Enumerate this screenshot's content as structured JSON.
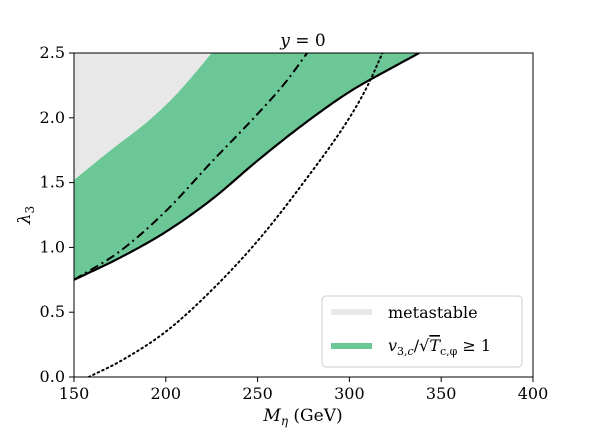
{
  "chart_data": {
    "type": "area",
    "title": "y = 0",
    "xlabel": "M_η (GeV)",
    "ylabel": "λ_3",
    "xlim": [
      150,
      400
    ],
    "ylim": [
      0,
      2.5
    ],
    "x_ticks": [
      150,
      200,
      250,
      300,
      350,
      400
    ],
    "x_tick_labels": [
      "150",
      "200",
      "250",
      "300",
      "350",
      "400"
    ],
    "y_ticks": [
      0,
      0.5,
      1.0,
      1.5,
      2.0,
      2.5
    ],
    "y_tick_labels": [
      "0.0",
      "0.5",
      "1.0",
      "1.5",
      "2.0",
      "2.5"
    ],
    "grid": false,
    "legend_position": "lower-right",
    "legend": [
      {
        "label": "metastable",
        "color": "#e8e8e8"
      },
      {
        "label": "v_{3,c}/√T_{c,φ} ≥ 1",
        "color": "#6cc796"
      }
    ],
    "series": [
      {
        "name": "metastable",
        "kind": "band",
        "color": "#e8e8e8",
        "upper_boundary": {
          "x": [
            150,
            400
          ],
          "y": [
            2.5,
            2.5
          ]
        },
        "lower_boundary": {
          "x": [
            150,
            170,
            190,
            205,
            215,
            225
          ],
          "y": [
            1.52,
            1.75,
            1.97,
            2.17,
            2.33,
            2.5
          ]
        }
      },
      {
        "name": "v_{3,c}/√T_{c,φ} ≥ 1",
        "kind": "band",
        "color": "#6cc796",
        "upper_boundary": {
          "x": [
            150,
            170,
            190,
            205,
            215,
            225
          ],
          "y": [
            1.52,
            1.75,
            1.97,
            2.17,
            2.33,
            2.5
          ]
        },
        "lower_boundary": {
          "x": [
            150,
            175,
            200,
            225,
            250,
            275,
            300,
            325,
            338
          ],
          "y": [
            0.75,
            0.92,
            1.12,
            1.37,
            1.67,
            1.95,
            2.2,
            2.4,
            2.5
          ]
        }
      },
      {
        "name": "solid",
        "kind": "line",
        "style": "solid",
        "color": "#000000",
        "x": [
          150,
          175,
          200,
          225,
          250,
          275,
          300,
          325,
          338
        ],
        "y": [
          0.75,
          0.92,
          1.12,
          1.37,
          1.67,
          1.95,
          2.2,
          2.4,
          2.5
        ]
      },
      {
        "name": "dash-dot",
        "kind": "line",
        "style": "dashdot",
        "color": "#000000",
        "x": [
          150,
          175,
          200,
          225,
          250,
          265,
          277
        ],
        "y": [
          0.75,
          0.97,
          1.28,
          1.66,
          2.03,
          2.27,
          2.5
        ]
      },
      {
        "name": "dotted",
        "kind": "line",
        "style": "dotted",
        "color": "#000000",
        "x": [
          158,
          175,
          200,
          225,
          250,
          275,
          300,
          310,
          318
        ],
        "y": [
          0.0,
          0.12,
          0.35,
          0.67,
          1.05,
          1.5,
          2.0,
          2.25,
          2.5
        ]
      }
    ]
  }
}
